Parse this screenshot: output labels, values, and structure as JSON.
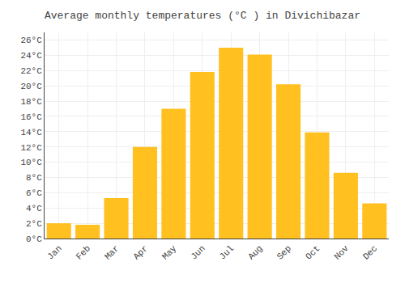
{
  "chart_data": {
    "type": "bar",
    "title": "Average monthly temperatures (°C ) in Divichibazar",
    "categories": [
      "Jan",
      "Feb",
      "Mar",
      "Apr",
      "May",
      "Jun",
      "Jul",
      "Aug",
      "Sep",
      "Oct",
      "Nov",
      "Dec"
    ],
    "values": [
      2.0,
      1.8,
      5.3,
      12.0,
      17.0,
      21.8,
      25.0,
      24.1,
      20.2,
      13.9,
      8.6,
      4.6
    ],
    "color": "#FFC020",
    "ylim": [
      0,
      27
    ],
    "yticks": [
      {
        "value": 0,
        "label": "0°C"
      },
      {
        "value": 2,
        "label": "2°C"
      },
      {
        "value": 4,
        "label": "4°C"
      },
      {
        "value": 6,
        "label": "6°C"
      },
      {
        "value": 8,
        "label": "8°C"
      },
      {
        "value": 10,
        "label": "10°C"
      },
      {
        "value": 12,
        "label": "12°C"
      },
      {
        "value": 14,
        "label": "14°C"
      },
      {
        "value": 16,
        "label": "16°C"
      },
      {
        "value": 18,
        "label": "18°C"
      },
      {
        "value": 20,
        "label": "20°C"
      },
      {
        "value": 22,
        "label": "22°C"
      },
      {
        "value": 24,
        "label": "24°C"
      },
      {
        "value": 26,
        "label": "26°C"
      }
    ],
    "grid": true
  }
}
